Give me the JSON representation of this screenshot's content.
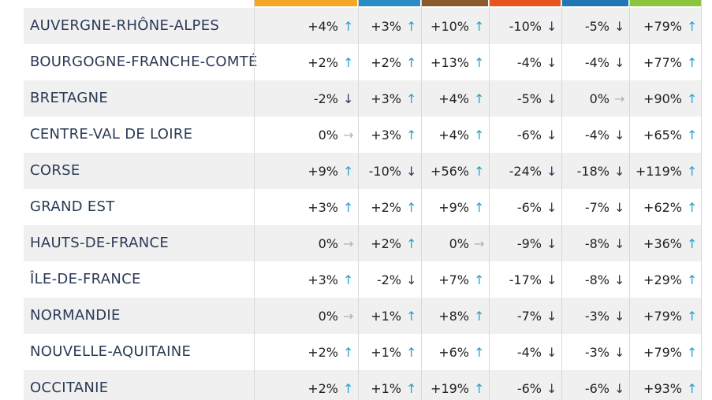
{
  "colors": {
    "header_bars": [
      "#f5a623",
      "#2b8cc4",
      "#8b5a2b",
      "#e8531f",
      "#1f78b4",
      "#8cc63f"
    ],
    "up": "#2aa0d0",
    "down": "#2b3a55",
    "flat": "#b0b0b0",
    "region_text": "#2b3a55"
  },
  "chart_data": {
    "type": "table",
    "columns": [
      "",
      "",
      "",
      "",
      "",
      ""
    ],
    "rows": [
      {
        "region": "AUVERGNE-RHÔNE-ALPES",
        "cells": [
          {
            "text": "+4%",
            "trend": "up"
          },
          {
            "text": "+3%",
            "trend": "up"
          },
          {
            "text": "+10%",
            "trend": "up"
          },
          {
            "text": "-10%",
            "trend": "down"
          },
          {
            "text": "-5%",
            "trend": "down"
          },
          {
            "text": "+79%",
            "trend": "up"
          }
        ]
      },
      {
        "region": "BOURGOGNE-FRANCHE-COMTÉ",
        "cells": [
          {
            "text": "+2%",
            "trend": "up"
          },
          {
            "text": "+2%",
            "trend": "up"
          },
          {
            "text": "+13%",
            "trend": "up"
          },
          {
            "text": "-4%",
            "trend": "down"
          },
          {
            "text": "-4%",
            "trend": "down"
          },
          {
            "text": "+77%",
            "trend": "up"
          }
        ]
      },
      {
        "region": "BRETAGNE",
        "cells": [
          {
            "text": "-2%",
            "trend": "down"
          },
          {
            "text": "+3%",
            "trend": "up"
          },
          {
            "text": "+4%",
            "trend": "up"
          },
          {
            "text": "-5%",
            "trend": "down"
          },
          {
            "text": "0%",
            "trend": "flat"
          },
          {
            "text": "+90%",
            "trend": "up"
          }
        ]
      },
      {
        "region": "CENTRE-VAL DE LOIRE",
        "cells": [
          {
            "text": "0%",
            "trend": "flat"
          },
          {
            "text": "+3%",
            "trend": "up"
          },
          {
            "text": "+4%",
            "trend": "up"
          },
          {
            "text": "-6%",
            "trend": "down"
          },
          {
            "text": "-4%",
            "trend": "down"
          },
          {
            "text": "+65%",
            "trend": "up"
          }
        ]
      },
      {
        "region": "CORSE",
        "cells": [
          {
            "text": "+9%",
            "trend": "up"
          },
          {
            "text": "-10%",
            "trend": "down"
          },
          {
            "text": "+56%",
            "trend": "up"
          },
          {
            "text": "-24%",
            "trend": "down"
          },
          {
            "text": "-18%",
            "trend": "down"
          },
          {
            "text": "+119%",
            "trend": "up"
          }
        ]
      },
      {
        "region": "GRAND EST",
        "cells": [
          {
            "text": "+3%",
            "trend": "up"
          },
          {
            "text": "+2%",
            "trend": "up"
          },
          {
            "text": "+9%",
            "trend": "up"
          },
          {
            "text": "-6%",
            "trend": "down"
          },
          {
            "text": "-7%",
            "trend": "down"
          },
          {
            "text": "+62%",
            "trend": "up"
          }
        ]
      },
      {
        "region": "HAUTS-DE-FRANCE",
        "cells": [
          {
            "text": "0%",
            "trend": "flat"
          },
          {
            "text": "+2%",
            "trend": "up"
          },
          {
            "text": "0%",
            "trend": "flat"
          },
          {
            "text": "-9%",
            "trend": "down"
          },
          {
            "text": "-8%",
            "trend": "down"
          },
          {
            "text": "+36%",
            "trend": "up"
          }
        ]
      },
      {
        "region": "ÎLE-DE-FRANCE",
        "cells": [
          {
            "text": "+3%",
            "trend": "up"
          },
          {
            "text": "-2%",
            "trend": "down"
          },
          {
            "text": "+7%",
            "trend": "up"
          },
          {
            "text": "-17%",
            "trend": "down"
          },
          {
            "text": "-8%",
            "trend": "down"
          },
          {
            "text": "+29%",
            "trend": "up"
          }
        ]
      },
      {
        "region": "NORMANDIE",
        "cells": [
          {
            "text": "0%",
            "trend": "flat"
          },
          {
            "text": "+1%",
            "trend": "up"
          },
          {
            "text": "+8%",
            "trend": "up"
          },
          {
            "text": "-7%",
            "trend": "down"
          },
          {
            "text": "-3%",
            "trend": "down"
          },
          {
            "text": "+79%",
            "trend": "up"
          }
        ]
      },
      {
        "region": "NOUVELLE-AQUITAINE",
        "cells": [
          {
            "text": "+2%",
            "trend": "up"
          },
          {
            "text": "+1%",
            "trend": "up"
          },
          {
            "text": "+6%",
            "trend": "up"
          },
          {
            "text": "-4%",
            "trend": "down"
          },
          {
            "text": "-3%",
            "trend": "down"
          },
          {
            "text": "+79%",
            "trend": "up"
          }
        ]
      },
      {
        "region": "OCCITANIE",
        "cells": [
          {
            "text": "+2%",
            "trend": "up"
          },
          {
            "text": "+1%",
            "trend": "up"
          },
          {
            "text": "+19%",
            "trend": "up"
          },
          {
            "text": "-6%",
            "trend": "down"
          },
          {
            "text": "-6%",
            "trend": "down"
          },
          {
            "text": "+93%",
            "trend": "up"
          }
        ]
      }
    ]
  }
}
